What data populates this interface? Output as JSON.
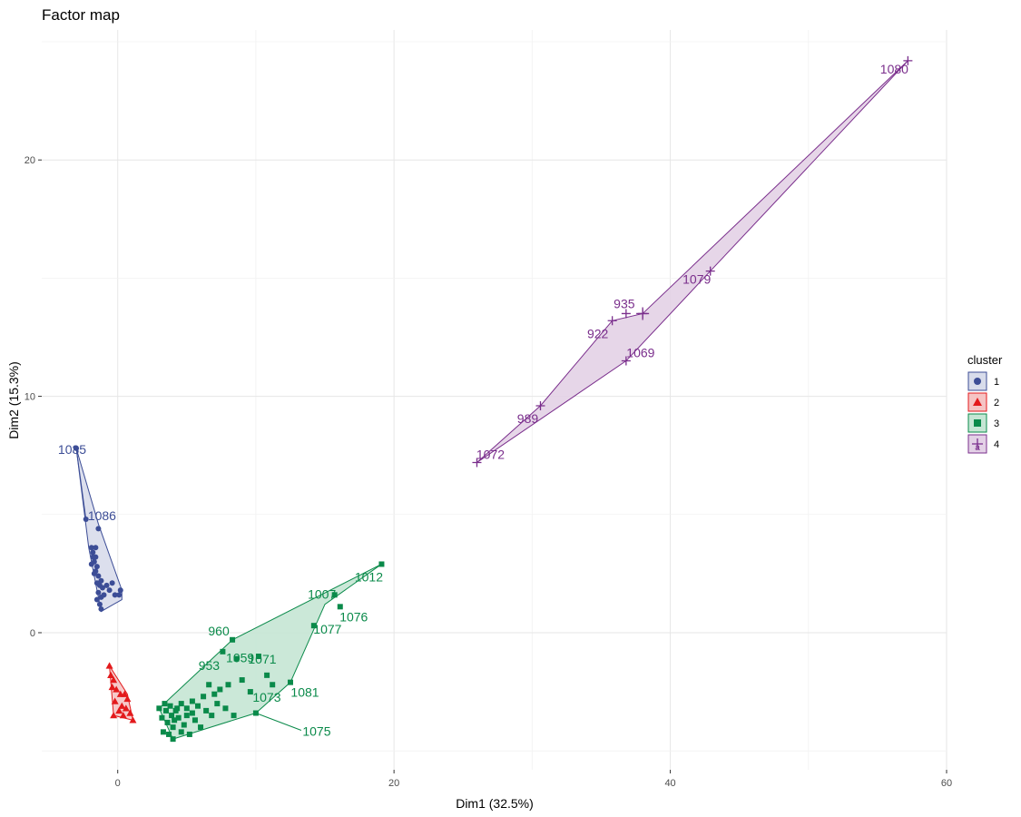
{
  "chart_data": {
    "type": "scatter",
    "title": "Factor map",
    "xlabel": "Dim1 (32.5%)",
    "ylabel": "Dim2 (15.3%)",
    "xlim": [
      -5.5,
      60
    ],
    "ylim": [
      -5.8,
      25.5
    ],
    "xticks": [
      0,
      20,
      40,
      60
    ],
    "yticks": [
      0,
      10,
      20
    ],
    "grid": true,
    "legend": {
      "title": "cluster",
      "position": "right"
    },
    "clusters": [
      {
        "name": "1",
        "color": "#3C4D96",
        "fill": "#D8DCEB",
        "shape": "circle",
        "hull": [
          [
            -3.0,
            7.8
          ],
          [
            -1.4,
            4.6
          ],
          [
            0.3,
            1.8
          ],
          [
            0.3,
            1.4
          ],
          [
            -1.2,
            0.9
          ],
          [
            -2.1,
            3.6
          ]
        ],
        "points": [
          [
            -3.0,
            7.8
          ],
          [
            -2.3,
            4.8
          ],
          [
            -1.4,
            4.4
          ],
          [
            -1.9,
            3.6
          ],
          [
            -1.8,
            3.4
          ],
          [
            -1.6,
            3.2
          ],
          [
            -1.7,
            3.0
          ],
          [
            -1.5,
            2.8
          ],
          [
            -1.6,
            2.6
          ],
          [
            -1.4,
            2.4
          ],
          [
            -1.2,
            2.2
          ],
          [
            -1.5,
            2.1
          ],
          [
            -1.3,
            2.0
          ],
          [
            -1.1,
            1.9
          ],
          [
            -1.4,
            1.7
          ],
          [
            -1.2,
            1.5
          ],
          [
            -1.5,
            1.4
          ],
          [
            -1.3,
            1.2
          ],
          [
            -1.2,
            1.0
          ],
          [
            -0.8,
            2.0
          ],
          [
            -0.6,
            1.8
          ],
          [
            -0.4,
            2.1
          ],
          [
            -0.2,
            1.6
          ],
          [
            0.2,
            1.8
          ],
          [
            0.1,
            1.6
          ],
          [
            -1.0,
            1.6
          ],
          [
            -1.7,
            2.5
          ],
          [
            -1.9,
            2.9
          ],
          [
            -1.8,
            3.2
          ],
          [
            -1.6,
            3.6
          ]
        ],
        "labels": [
          {
            "text": "1085",
            "x": -3.0,
            "y": 7.8
          },
          {
            "text": "1086",
            "x": -1.4,
            "y": 4.6
          }
        ]
      },
      {
        "name": "2",
        "color": "#E31A1C",
        "fill": "#F5C4C4",
        "shape": "triangle",
        "hull": [
          [
            -0.6,
            -1.4
          ],
          [
            0.7,
            -2.6
          ],
          [
            1.1,
            -3.7
          ],
          [
            -0.3,
            -3.5
          ]
        ],
        "points": [
          [
            -0.6,
            -1.4
          ],
          [
            -0.5,
            -1.8
          ],
          [
            -0.3,
            -2.0
          ],
          [
            -0.4,
            -2.3
          ],
          [
            -0.1,
            -2.4
          ],
          [
            0.2,
            -2.6
          ],
          [
            0.5,
            -2.6
          ],
          [
            0.7,
            -2.8
          ],
          [
            -0.2,
            -2.9
          ],
          [
            0.3,
            -3.1
          ],
          [
            0.6,
            -3.2
          ],
          [
            0.9,
            -3.4
          ],
          [
            1.1,
            -3.7
          ],
          [
            -0.3,
            -3.5
          ],
          [
            0.1,
            -3.3
          ],
          [
            0.4,
            -3.5
          ]
        ],
        "labels": []
      },
      {
        "name": "3",
        "color": "#0A8A4A",
        "fill": "#C5E6D4",
        "shape": "square",
        "hull": [
          [
            19.1,
            2.9
          ],
          [
            15.0,
            1.2
          ],
          [
            12.5,
            -2.1
          ],
          [
            10.0,
            -3.4
          ],
          [
            4.0,
            -4.5
          ],
          [
            3.0,
            -3.2
          ],
          [
            8.3,
            -0.3
          ]
        ],
        "points": [
          [
            19.1,
            2.9
          ],
          [
            15.7,
            1.6
          ],
          [
            16.1,
            1.1
          ],
          [
            14.2,
            0.3
          ],
          [
            8.3,
            -0.3
          ],
          [
            7.6,
            -0.8
          ],
          [
            8.6,
            -1.1
          ],
          [
            10.2,
            -1.0
          ],
          [
            12.5,
            -2.1
          ],
          [
            10.0,
            -3.4
          ],
          [
            4.0,
            -4.5
          ],
          [
            3.0,
            -3.2
          ],
          [
            3.4,
            -3.0
          ],
          [
            3.8,
            -3.1
          ],
          [
            4.2,
            -3.3
          ],
          [
            4.6,
            -3.0
          ],
          [
            5.0,
            -3.2
          ],
          [
            5.4,
            -2.9
          ],
          [
            5.8,
            -3.1
          ],
          [
            6.2,
            -2.7
          ],
          [
            6.6,
            -2.2
          ],
          [
            7.0,
            -2.6
          ],
          [
            7.4,
            -2.4
          ],
          [
            8.0,
            -2.2
          ],
          [
            9.0,
            -2.0
          ],
          [
            9.6,
            -2.5
          ],
          [
            10.8,
            -1.8
          ],
          [
            11.2,
            -2.2
          ],
          [
            7.8,
            -3.2
          ],
          [
            8.4,
            -3.5
          ],
          [
            3.2,
            -3.6
          ],
          [
            3.6,
            -3.8
          ],
          [
            4.0,
            -4.0
          ],
          [
            4.4,
            -3.6
          ],
          [
            4.8,
            -3.9
          ],
          [
            5.2,
            -4.3
          ],
          [
            5.6,
            -3.7
          ],
          [
            6.0,
            -4.0
          ],
          [
            3.3,
            -4.2
          ],
          [
            3.7,
            -4.3
          ],
          [
            4.6,
            -4.2
          ],
          [
            5.0,
            -3.5
          ],
          [
            5.4,
            -3.4
          ],
          [
            6.4,
            -3.3
          ],
          [
            6.8,
            -3.5
          ],
          [
            7.2,
            -3.0
          ],
          [
            3.5,
            -3.3
          ],
          [
            3.9,
            -3.5
          ],
          [
            4.1,
            -3.7
          ],
          [
            4.3,
            -3.2
          ]
        ],
        "labels": [
          {
            "text": "1007",
            "x": 15.7,
            "y": 1.6
          },
          {
            "text": "1012",
            "x": 19.1,
            "y": 2.9
          },
          {
            "text": "1076",
            "x": 16.1,
            "y": 1.1
          },
          {
            "text": "960",
            "x": 8.3,
            "y": -0.3
          },
          {
            "text": "1071",
            "x": 10.2,
            "y": -1.0
          },
          {
            "text": "1077",
            "x": 14.2,
            "y": 0.3
          },
          {
            "text": "953",
            "x": 7.6,
            "y": -0.8
          },
          {
            "text": "1059",
            "x": 8.6,
            "y": -1.1
          },
          {
            "text": "1073",
            "x": 10.0,
            "y": -3.0
          },
          {
            "text": "1081",
            "x": 12.5,
            "y": -2.1
          },
          {
            "text": "1075",
            "x": 10.0,
            "y": -3.4
          }
        ]
      },
      {
        "name": "4",
        "color": "#7A2E8C",
        "fill": "#E3D1E6",
        "shape": "plus",
        "hull": [
          [
            57.2,
            24.2
          ],
          [
            42.9,
            15.3
          ],
          [
            36.8,
            11.5
          ],
          [
            26.0,
            7.2
          ],
          [
            30.6,
            9.6
          ],
          [
            35.8,
            13.2
          ],
          [
            38.0,
            13.5
          ]
        ],
        "points": [
          [
            57.2,
            24.2
          ],
          [
            42.9,
            15.3
          ],
          [
            36.8,
            13.5
          ],
          [
            35.8,
            13.2
          ],
          [
            38.0,
            13.5
          ],
          [
            36.8,
            11.5
          ],
          [
            30.6,
            9.6
          ],
          [
            26.0,
            7.2
          ]
        ],
        "labels": [
          {
            "text": "1080",
            "x": 57.2,
            "y": 24.2
          },
          {
            "text": "1079",
            "x": 42.9,
            "y": 15.3
          },
          {
            "text": "935",
            "x": 36.8,
            "y": 13.5
          },
          {
            "text": "922",
            "x": 35.8,
            "y": 13.2
          },
          {
            "text": "1069",
            "x": 36.8,
            "y": 11.5
          },
          {
            "text": "989",
            "x": 30.6,
            "y": 9.6
          },
          {
            "text": "1072",
            "x": 26.0,
            "y": 7.2
          }
        ]
      }
    ]
  }
}
